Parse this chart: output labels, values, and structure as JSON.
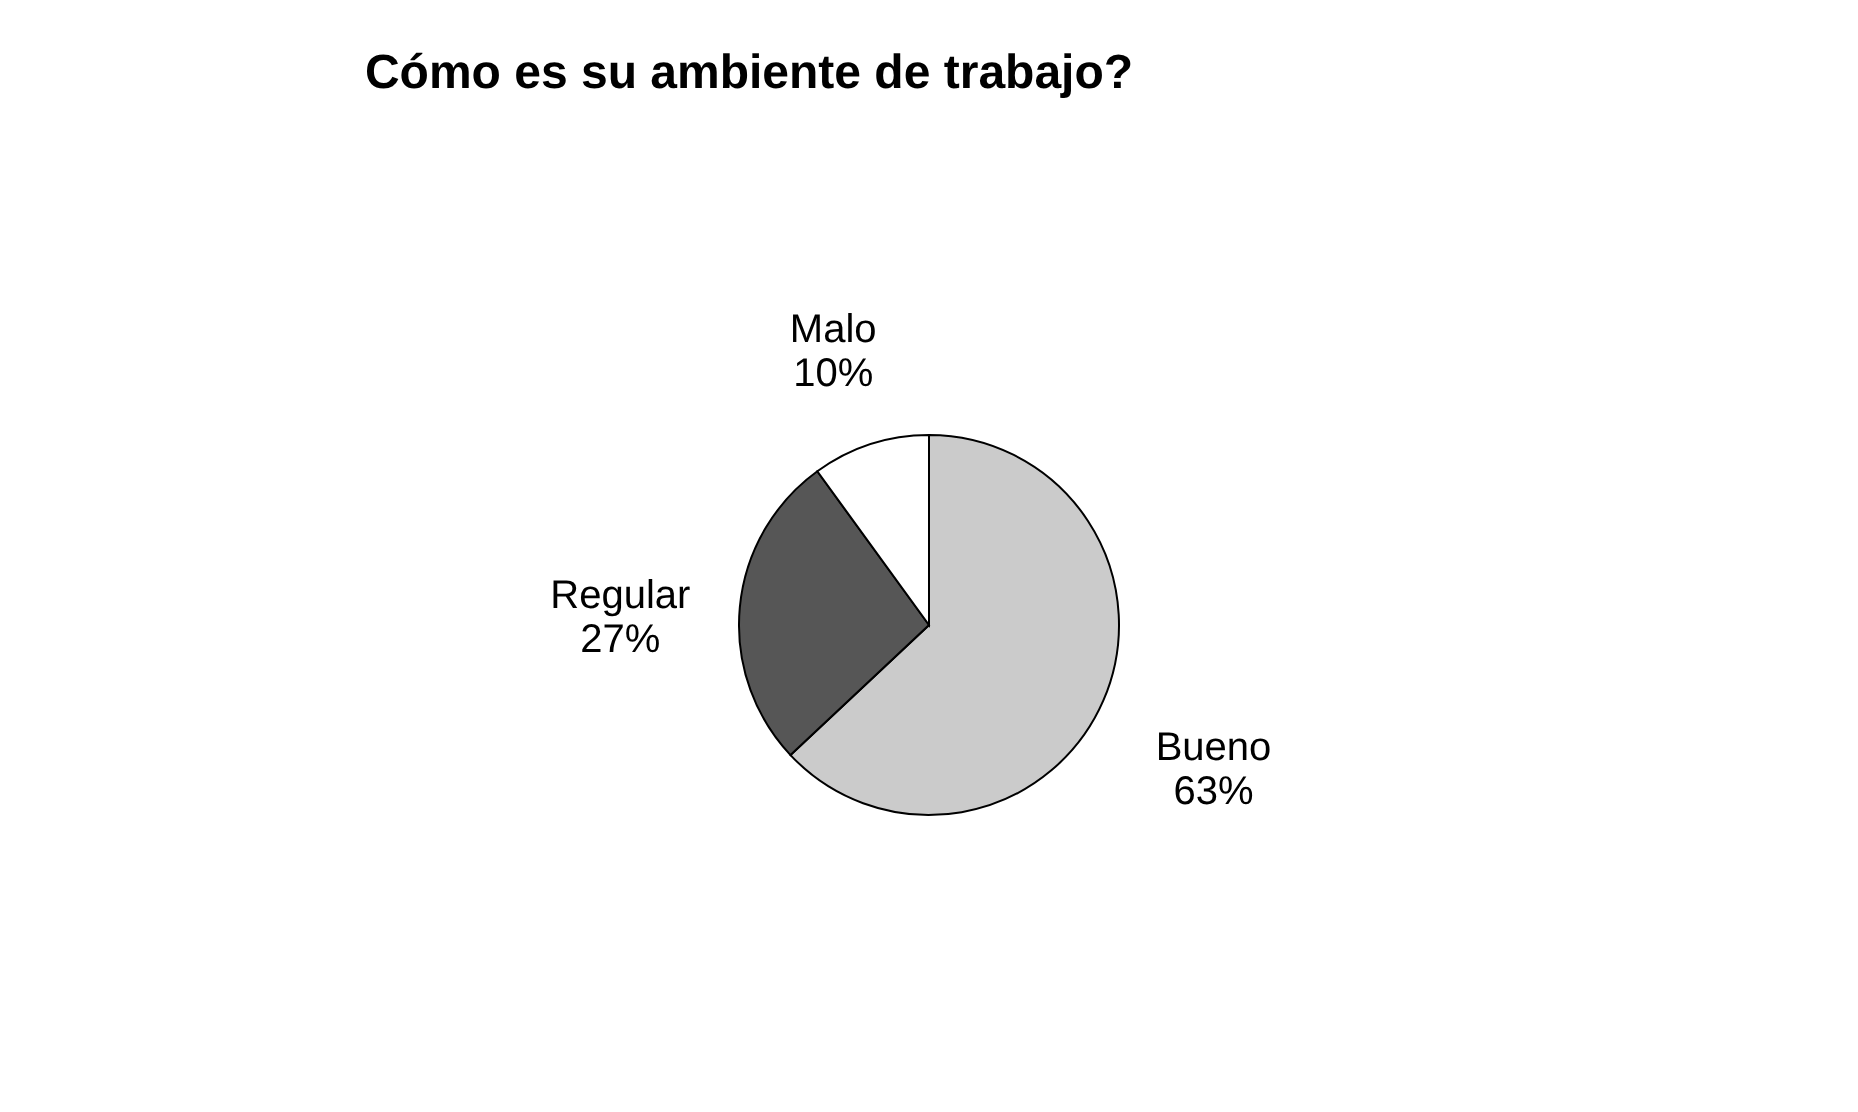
{
  "chart_data": {
    "type": "pie",
    "title": "Cómo es su ambiente de trabajo?",
    "categories": [
      "Bueno",
      "Regular",
      "Malo"
    ],
    "values": [
      63,
      27,
      10
    ],
    "colors": [
      "#cbcbcb",
      "#565656",
      "#ffffff"
    ],
    "data_labels": true,
    "value_labels": [
      "63%",
      "27%",
      "10%"
    ],
    "legend": false
  }
}
